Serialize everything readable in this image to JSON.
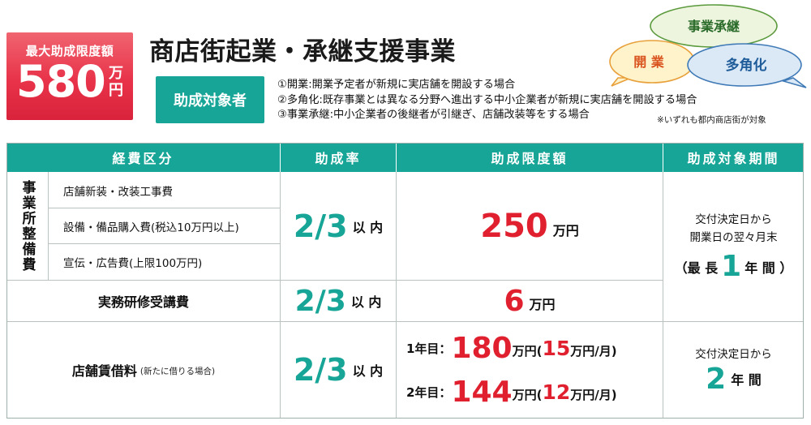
{
  "badge": {
    "label": "最大助成限度額",
    "amount": "580",
    "unit": "万円"
  },
  "title": "商店街起業・承継支援事業",
  "bubbles": {
    "succession": "事業承継",
    "opening": "開 業",
    "diversification": "多角化"
  },
  "target": {
    "label": "助成対象者",
    "lines": [
      "①開業:開業予定者が新規に実店舗を開設する場合",
      "②多角化:既存事業とは異なる分野へ進出する中小企業者が新規に実店舗を開設する場合",
      "③事業承継:中小企業者の後継者が引継ぎ、店舗改装等をする場合"
    ],
    "note": "※いずれも都内商店街が対象"
  },
  "colors": {
    "teal": "#16a596",
    "red": "#e0202f",
    "badge_red": "#e8334a"
  },
  "table": {
    "headers": [
      "経費区分",
      "助成率",
      "助成限度額",
      "助成対象期間"
    ],
    "group_label": "事業所整備費",
    "group_items": [
      "店舗新装・改装工事費",
      "設備・備品購入費(税込10万円以上)",
      "宣伝・広告費(上限100万円)"
    ],
    "group_rate": {
      "value": "2/3",
      "suffix": "以 内"
    },
    "group_limit": {
      "value": "250",
      "unit": "万円"
    },
    "period1": {
      "line1": "交付決定日から",
      "line2": "開業日の翌々月末",
      "open": "（最 長",
      "num": "1",
      "close": "年 間 ）"
    },
    "training": {
      "label": "実務研修受講費",
      "rate": "2/3",
      "rate_suffix": "以 内",
      "limit": "6",
      "limit_unit": "万円"
    },
    "rent": {
      "label": "店舗賃借料",
      "label_note": "(新たに借りる場合)",
      "rate": "2/3",
      "rate_suffix": "以 内",
      "year1": {
        "label": "1年目：",
        "value": "180",
        "unit": "万円(",
        "monthly": "15",
        "monthly_unit": "万円/月)"
      },
      "year2": {
        "label": "2年目：",
        "value": "144",
        "unit": "万円(",
        "monthly": "12",
        "monthly_unit": "万円/月)"
      },
      "period": {
        "line1": "交付決定日から",
        "num": "2",
        "suffix": "年 間"
      }
    }
  }
}
